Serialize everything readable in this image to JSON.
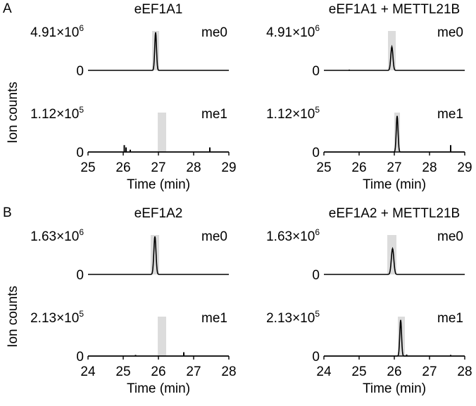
{
  "figure": {
    "panels": [
      {
        "label": "A",
        "ylabel": "Ion counts",
        "xlabel": "Time (min)",
        "xlim": [
          25,
          29
        ],
        "xticks": [
          "25",
          "26",
          "27",
          "28",
          "29"
        ],
        "columns": [
          {
            "title": "eEF1A1",
            "rows": [
              {
                "tag": "me0",
                "ymax_mant": "4.91",
                "ymax_exp": "6",
                "yzero": "0",
                "shade": [
                  26.82,
                  27.02
                ],
                "peak": {
                  "center": 26.92,
                  "height": 1.0,
                  "width": 0.025
                }
              },
              {
                "tag": "me1",
                "ymax_mant": "1.12",
                "ymax_exp": "5",
                "yzero": "0",
                "shade": [
                  26.98,
                  27.22
                ],
                "spikes": [
                  [
                    26.03,
                    0.18
                  ],
                  [
                    26.08,
                    0.12
                  ],
                  [
                    26.2,
                    0.06
                  ],
                  [
                    28.46,
                    0.12
                  ]
                ]
              }
            ]
          },
          {
            "title": "eEF1A1 + METTL21B",
            "rows": [
              {
                "tag": "me0",
                "ymax_mant": "4.91",
                "ymax_exp": "6",
                "yzero": "0",
                "shade": [
                  26.82,
                  27.04
                ],
                "peak": {
                  "center": 26.93,
                  "height": 0.62,
                  "width": 0.03
                },
                "spikes": [
                  [
                    25.72,
                    0.02
                  ]
                ]
              },
              {
                "tag": "me1",
                "ymax_mant": "1.12",
                "ymax_exp": "5",
                "yzero": "0",
                "shade": [
                  27.0,
                  27.16
                ],
                "peak": {
                  "center": 27.08,
                  "height": 0.95,
                  "width": 0.025
                },
                "spikes": [
                  [
                    28.6,
                    0.18
                  ]
                ]
              }
            ]
          }
        ]
      },
      {
        "label": "B",
        "ylabel": "Ion counts",
        "xlabel": "Time (min)",
        "xlim": [
          24,
          28
        ],
        "xticks": [
          "24",
          "25",
          "26",
          "27",
          "28"
        ],
        "columns": [
          {
            "title": "eEF1A2",
            "rows": [
              {
                "tag": "me0",
                "ymax_mant": "1.63",
                "ymax_exp": "6",
                "yzero": "0",
                "shade": [
                  25.78,
                  26.02
                ],
                "peak": {
                  "center": 25.9,
                  "height": 1.0,
                  "width": 0.03
                }
              },
              {
                "tag": "me1",
                "ymax_mant": "2.13",
                "ymax_exp": "5",
                "yzero": "0",
                "shade": [
                  25.98,
                  26.22
                ],
                "spikes": [
                  [
                    26.72,
                    0.1
                  ],
                  [
                    25.35,
                    0.03
                  ]
                ]
              }
            ]
          },
          {
            "title": "eEF1A2 + METTL21B",
            "rows": [
              {
                "tag": "me0",
                "ymax_mant": "1.63",
                "ymax_exp": "6",
                "yzero": "0",
                "shade": [
                  25.8,
                  26.06
                ],
                "peak": {
                  "center": 25.95,
                  "height": 0.68,
                  "width": 0.035
                }
              },
              {
                "tag": "me1",
                "ymax_mant": "2.13",
                "ymax_exp": "5",
                "yzero": "0",
                "shade": [
                  26.1,
                  26.3
                ],
                "peak": {
                  "center": 26.18,
                  "height": 0.95,
                  "width": 0.025
                },
                "spikes": [
                  [
                    26.35,
                    0.04
                  ],
                  [
                    27.6,
                    0.03
                  ]
                ]
              }
            ]
          }
        ]
      }
    ]
  },
  "chart_data": {
    "type": "line",
    "charts": [
      {
        "panel": "A",
        "condition": "eEF1A1",
        "trace": "me0",
        "y_max": "4.91×10^6",
        "x_range": [
          25,
          29
        ],
        "shaded_window": [
          26.82,
          27.02
        ],
        "peak_rt": 26.92,
        "peak_rel": 1.0
      },
      {
        "panel": "A",
        "condition": "eEF1A1",
        "trace": "me1",
        "y_max": "1.12×10^5",
        "x_range": [
          25,
          29
        ],
        "shaded_window": [
          26.98,
          27.22
        ],
        "peak_rt": null,
        "peak_rel": 0.18
      },
      {
        "panel": "A",
        "condition": "eEF1A1 + METTL21B",
        "trace": "me0",
        "y_max": "4.91×10^6",
        "x_range": [
          25,
          29
        ],
        "shaded_window": [
          26.82,
          27.04
        ],
        "peak_rt": 26.93,
        "peak_rel": 0.62
      },
      {
        "panel": "A",
        "condition": "eEF1A1 + METTL21B",
        "trace": "me1",
        "y_max": "1.12×10^5",
        "x_range": [
          25,
          29
        ],
        "shaded_window": [
          27.0,
          27.16
        ],
        "peak_rt": 27.08,
        "peak_rel": 0.95
      },
      {
        "panel": "B",
        "condition": "eEF1A2",
        "trace": "me0",
        "y_max": "1.63×10^6",
        "x_range": [
          24,
          28
        ],
        "shaded_window": [
          25.78,
          26.02
        ],
        "peak_rt": 25.9,
        "peak_rel": 1.0
      },
      {
        "panel": "B",
        "condition": "eEF1A2",
        "trace": "me1",
        "y_max": "2.13×10^5",
        "x_range": [
          24,
          28
        ],
        "shaded_window": [
          25.98,
          26.22
        ],
        "peak_rt": null,
        "peak_rel": 0.1
      },
      {
        "panel": "B",
        "condition": "eEF1A2 + METTL21B",
        "trace": "me0",
        "y_max": "1.63×10^6",
        "x_range": [
          24,
          28
        ],
        "shaded_window": [
          25.8,
          26.06
        ],
        "peak_rt": 25.95,
        "peak_rel": 0.68
      },
      {
        "panel": "B",
        "condition": "eEF1A2 + METTL21B",
        "trace": "me1",
        "y_max": "2.13×10^5",
        "x_range": [
          24,
          28
        ],
        "shaded_window": [
          26.1,
          26.3
        ],
        "peak_rt": 26.18,
        "peak_rel": 0.95
      }
    ]
  }
}
